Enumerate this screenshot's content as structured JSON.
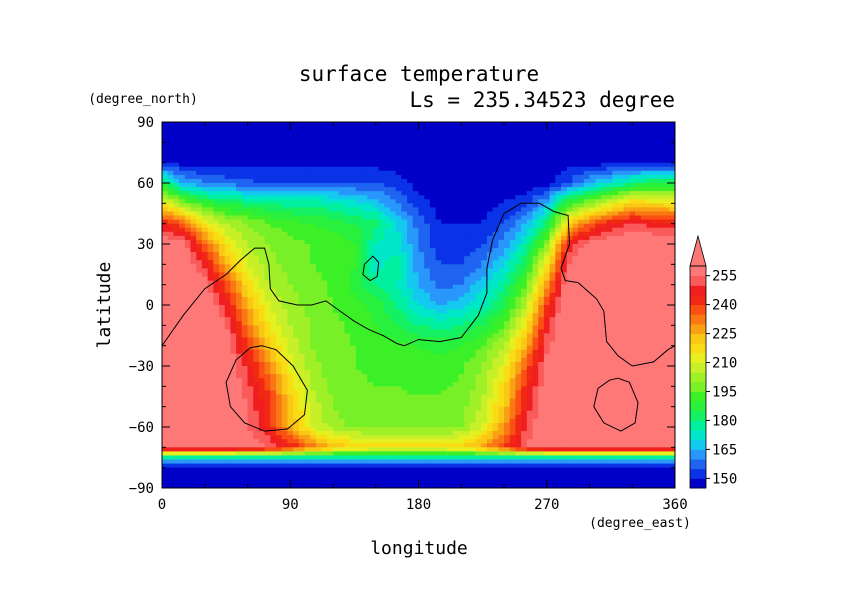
{
  "chart_data": {
    "type": "heatmap",
    "title": "surface temperature",
    "subtitle": "Ls = 235.34523 degree",
    "xlabel": "longitude",
    "ylabel": "latitude",
    "x_units": "(degree_east)",
    "y_units": "(degree_north)",
    "xlim": [
      0,
      360
    ],
    "ylim": [
      -90,
      90
    ],
    "x_ticks": [
      "0",
      "90",
      "180",
      "270",
      "360"
    ],
    "y_ticks": [
      "90",
      "60",
      "30",
      "0",
      "−30",
      "−60",
      "−90"
    ],
    "colorbar": {
      "levels": [
        145,
        150,
        155,
        160,
        165,
        170,
        175,
        180,
        185,
        190,
        195,
        200,
        205,
        210,
        215,
        220,
        225,
        230,
        235,
        240,
        245,
        250,
        255,
        260
      ],
      "tick_labels": [
        "150",
        "165",
        "180",
        "195",
        "210",
        "225",
        "240",
        "255"
      ],
      "colors": [
        "#0000c8",
        "#0a32e6",
        "#1e64f0",
        "#2896fa",
        "#14c8f0",
        "#00e6c8",
        "#00f0a0",
        "#14f064",
        "#28f03c",
        "#3cf028",
        "#78f028",
        "#a0f028",
        "#c8f028",
        "#e6f01e",
        "#fadc14",
        "#fac814",
        "#faa014",
        "#fa7814",
        "#fa5014",
        "#f02814",
        "#f01e1e",
        "#fa5a5a",
        "#ff7878"
      ],
      "extend_max_color": "#ff7878"
    },
    "field": {
      "lon": [
        0,
        15,
        30,
        45,
        60,
        75,
        90,
        105,
        120,
        135,
        150,
        165,
        180,
        195,
        210,
        225,
        240,
        255,
        270,
        285,
        300,
        315,
        330,
        345,
        360
      ],
      "lat": [
        90,
        80,
        70,
        60,
        50,
        40,
        30,
        20,
        10,
        0,
        -10,
        -20,
        -30,
        -40,
        -50,
        -60,
        -70,
        -75,
        -80,
        -90
      ],
      "values": [
        [
          148,
          148,
          148,
          148,
          148,
          148,
          148,
          148,
          148,
          148,
          148,
          148,
          148,
          148,
          148,
          148,
          148,
          148,
          148,
          148,
          148,
          148,
          148,
          148,
          148
        ],
        [
          148,
          148,
          148,
          148,
          148,
          148,
          148,
          148,
          148,
          148,
          148,
          148,
          148,
          148,
          148,
          148,
          148,
          148,
          148,
          148,
          148,
          148,
          148,
          148,
          148
        ],
        [
          148,
          148,
          148,
          148,
          148,
          148,
          148,
          148,
          148,
          148,
          148,
          148,
          148,
          148,
          148,
          148,
          148,
          148,
          148,
          148,
          148,
          148,
          148,
          148,
          148
        ],
        [
          185,
          165,
          160,
          158,
          156,
          155,
          155,
          155,
          155,
          155,
          155,
          152,
          148,
          148,
          148,
          148,
          148,
          148,
          148,
          155,
          165,
          172,
          180,
          185,
          185
        ],
        [
          215,
          200,
          190,
          185,
          182,
          180,
          178,
          178,
          176,
          172,
          168,
          160,
          152,
          148,
          148,
          148,
          150,
          152,
          165,
          190,
          200,
          210,
          220,
          218,
          215
        ],
        [
          245,
          235,
          215,
          205,
          200,
          195,
          192,
          190,
          188,
          185,
          182,
          170,
          158,
          150,
          150,
          150,
          155,
          165,
          182,
          220,
          235,
          245,
          250,
          248,
          245
        ],
        [
          262,
          258,
          235,
          215,
          205,
          200,
          197,
          195,
          193,
          190,
          175,
          172,
          160,
          152,
          152,
          155,
          162,
          175,
          200,
          245,
          258,
          262,
          262,
          262,
          262
        ],
        [
          265,
          262,
          248,
          225,
          210,
          202,
          198,
          195,
          193,
          190,
          172,
          178,
          162,
          155,
          155,
          160,
          170,
          185,
          215,
          255,
          265,
          265,
          265,
          265,
          265
        ],
        [
          265,
          262,
          258,
          238,
          218,
          205,
          200,
          197,
          194,
          188,
          180,
          175,
          165,
          158,
          160,
          168,
          178,
          195,
          228,
          262,
          265,
          265,
          265,
          265,
          265
        ],
        [
          265,
          265,
          262,
          248,
          225,
          210,
          202,
          198,
          195,
          192,
          188,
          180,
          170,
          165,
          168,
          175,
          185,
          205,
          240,
          265,
          265,
          265,
          265,
          265,
          265
        ],
        [
          265,
          265,
          265,
          255,
          232,
          215,
          205,
          200,
          196,
          194,
          190,
          185,
          180,
          178,
          180,
          185,
          195,
          215,
          248,
          265,
          265,
          265,
          265,
          265,
          265
        ],
        [
          265,
          265,
          265,
          260,
          240,
          222,
          208,
          200,
          196,
          195,
          193,
          192,
          190,
          188,
          190,
          195,
          205,
          225,
          252,
          265,
          265,
          265,
          265,
          265,
          265
        ],
        [
          265,
          265,
          265,
          262,
          248,
          230,
          212,
          202,
          197,
          195,
          194,
          193,
          192,
          192,
          194,
          200,
          212,
          235,
          258,
          265,
          265,
          265,
          265,
          265,
          265
        ],
        [
          265,
          265,
          265,
          262,
          252,
          238,
          218,
          205,
          198,
          196,
          195,
          195,
          194,
          194,
          196,
          203,
          218,
          242,
          260,
          265,
          265,
          265,
          265,
          265,
          265
        ],
        [
          265,
          265,
          265,
          262,
          255,
          242,
          222,
          208,
          200,
          197,
          196,
          196,
          196,
          196,
          198,
          206,
          222,
          246,
          262,
          265,
          265,
          265,
          265,
          265,
          265
        ],
        [
          265,
          265,
          265,
          262,
          255,
          244,
          225,
          210,
          202,
          199,
          198,
          198,
          198,
          198,
          200,
          210,
          228,
          250,
          263,
          265,
          265,
          265,
          265,
          265,
          265
        ],
        [
          265,
          265,
          265,
          265,
          260,
          255,
          245,
          235,
          225,
          220,
          218,
          218,
          218,
          218,
          220,
          228,
          240,
          255,
          265,
          265,
          265,
          265,
          265,
          265,
          265
        ],
        [
          175,
          175,
          175,
          175,
          175,
          175,
          175,
          175,
          175,
          175,
          175,
          175,
          175,
          175,
          175,
          175,
          175,
          175,
          175,
          175,
          175,
          175,
          175,
          175,
          175
        ],
        [
          148,
          148,
          148,
          148,
          148,
          148,
          148,
          148,
          148,
          148,
          148,
          148,
          148,
          148,
          148,
          148,
          148,
          148,
          148,
          148,
          148,
          148,
          148,
          148,
          148
        ],
        [
          148,
          148,
          148,
          148,
          148,
          148,
          148,
          148,
          148,
          148,
          148,
          148,
          148,
          148,
          148,
          148,
          148,
          148,
          148,
          148,
          148,
          148,
          148,
          148,
          148
        ]
      ]
    },
    "contours": [
      [
        [
          0,
          -20
        ],
        [
          15,
          -5
        ],
        [
          30,
          8
        ],
        [
          45,
          15
        ],
        [
          55,
          22
        ],
        [
          65,
          28
        ],
        [
          72,
          28
        ],
        [
          75,
          20
        ],
        [
          76,
          8
        ],
        [
          82,
          2
        ],
        [
          95,
          0
        ],
        [
          105,
          0
        ],
        [
          115,
          2
        ],
        [
          125,
          -3
        ],
        [
          135,
          -8
        ],
        [
          145,
          -12
        ],
        [
          155,
          -15
        ],
        [
          165,
          -19
        ],
        [
          170,
          -20
        ],
        [
          180,
          -17
        ],
        [
          195,
          -18
        ],
        [
          210,
          -16
        ],
        [
          222,
          -5
        ],
        [
          228,
          6
        ],
        [
          228,
          18
        ],
        [
          232,
          32
        ],
        [
          240,
          45
        ],
        [
          252,
          50
        ],
        [
          265,
          50
        ],
        [
          275,
          46
        ],
        [
          285,
          44
        ],
        [
          286,
          30
        ],
        [
          280,
          18
        ],
        [
          283,
          12
        ],
        [
          292,
          11
        ],
        [
          305,
          3
        ],
        [
          310,
          -3
        ],
        [
          312,
          -18
        ],
        [
          320,
          -25
        ],
        [
          330,
          -30
        ],
        [
          345,
          -28
        ],
        [
          355,
          -22
        ],
        [
          360,
          -20
        ]
      ],
      [
        [
          70,
          -20
        ],
        [
          80,
          -22
        ],
        [
          92,
          -30
        ],
        [
          102,
          -42
        ],
        [
          100,
          -54
        ],
        [
          88,
          -61
        ],
        [
          72,
          -62
        ],
        [
          58,
          -58
        ],
        [
          48,
          -50
        ],
        [
          45,
          -38
        ],
        [
          52,
          -27
        ],
        [
          62,
          -21
        ],
        [
          70,
          -20
        ]
      ],
      [
        [
          320,
          -36
        ],
        [
          328,
          -38
        ],
        [
          334,
          -48
        ],
        [
          332,
          -58
        ],
        [
          322,
          -62
        ],
        [
          310,
          -58
        ],
        [
          303,
          -50
        ],
        [
          306,
          -41
        ],
        [
          314,
          -37
        ],
        [
          320,
          -36
        ]
      ],
      [
        [
          142,
          20
        ],
        [
          148,
          24
        ],
        [
          152,
          21
        ],
        [
          151,
          14
        ],
        [
          146,
          12
        ],
        [
          141,
          15
        ],
        [
          142,
          20
        ]
      ]
    ]
  }
}
